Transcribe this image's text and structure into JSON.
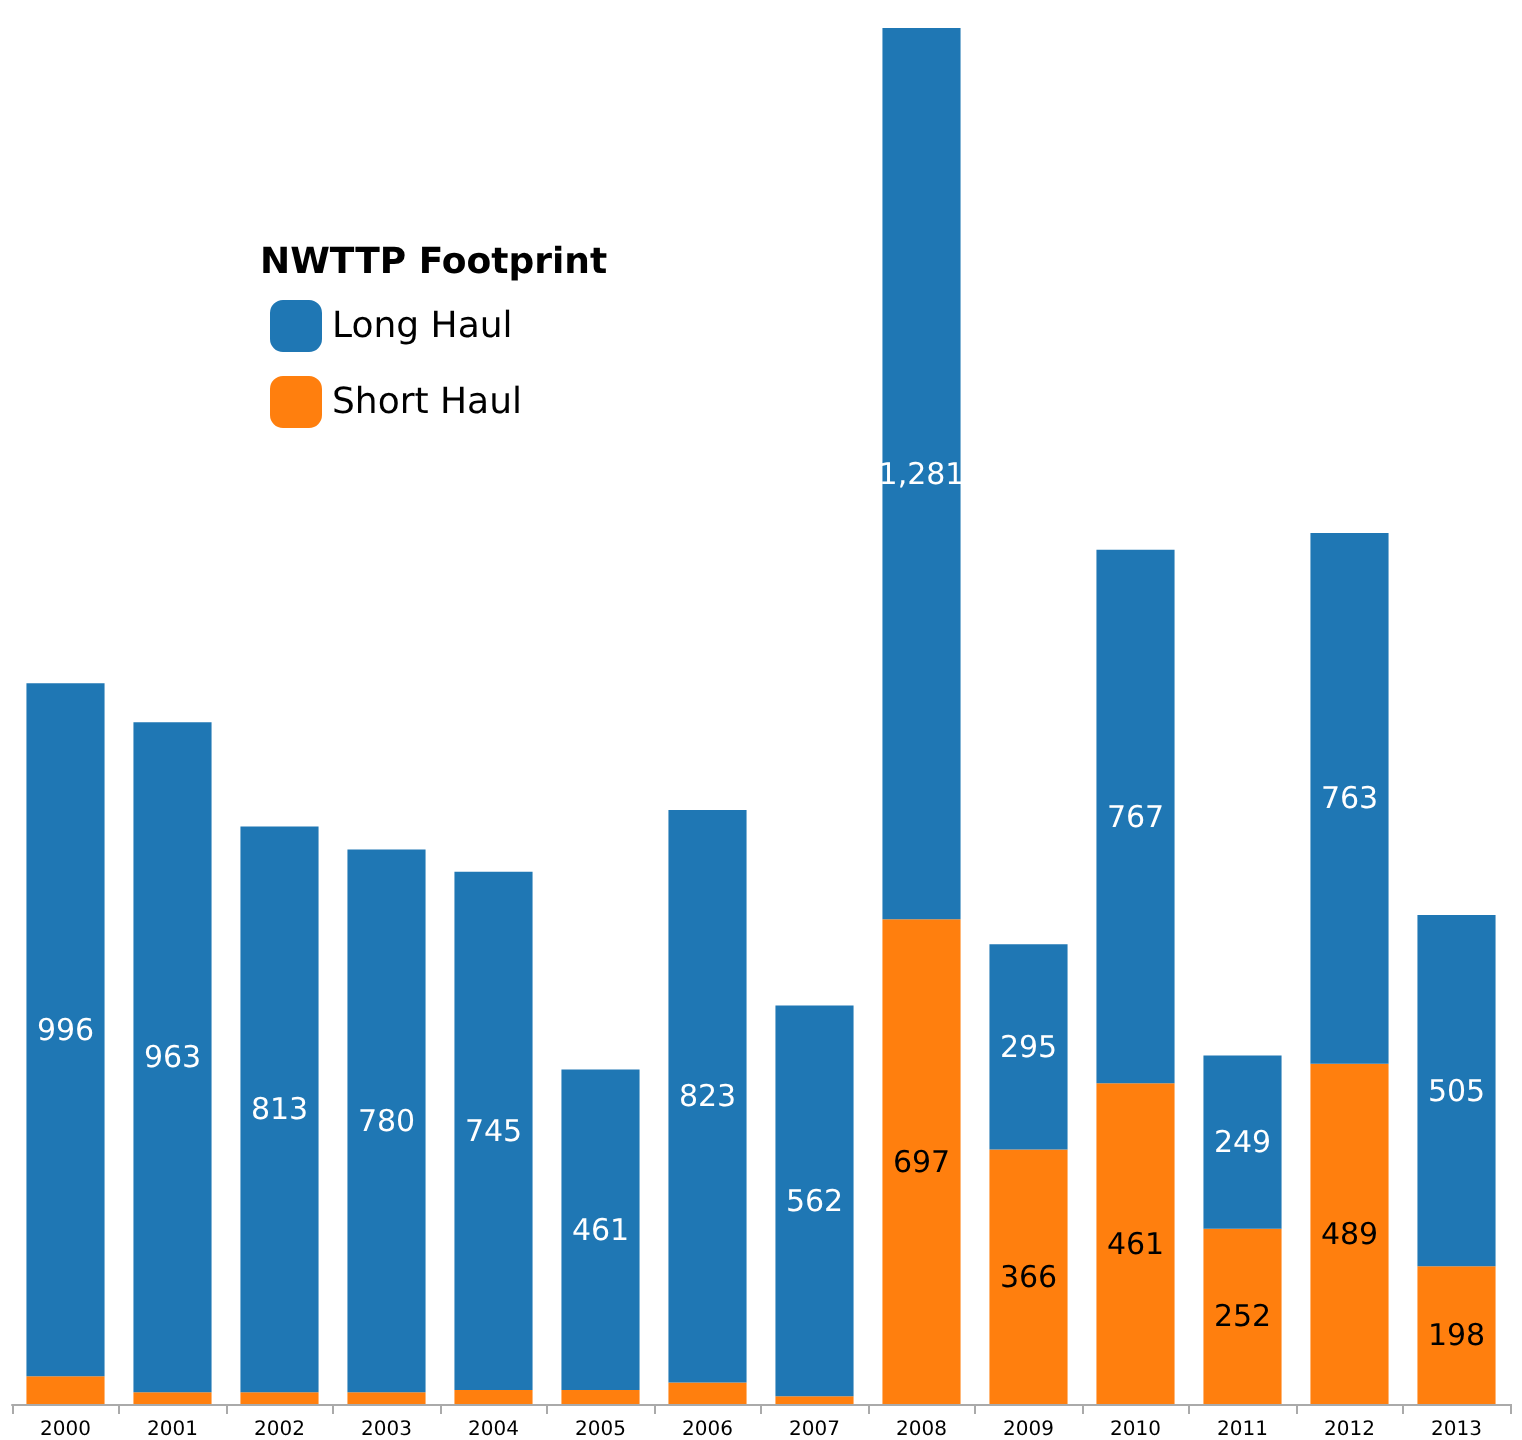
{
  "chart_data": {
    "type": "bar",
    "stacked": true,
    "legend": "top left",
    "legend_title": "NWTTP Footprint",
    "categories": [
      "2000",
      "2001",
      "2002",
      "2003",
      "2004",
      "2005",
      "2006",
      "2007",
      "2008",
      "2009",
      "2010",
      "2011",
      "2012",
      "2013"
    ],
    "series": [
      {
        "name": "Short Haul",
        "color": "#ff7f0e",
        "values": [
          40,
          17,
          17,
          17,
          20,
          20,
          31,
          11,
          697,
          366,
          461,
          252,
          489,
          198
        ],
        "value_labels": [
          null,
          null,
          null,
          null,
          null,
          null,
          null,
          null,
          "697",
          "366",
          "461",
          "252",
          "489",
          "198"
        ]
      },
      {
        "name": "Long Haul",
        "color": "#1f77b4",
        "values": [
          996,
          963,
          813,
          780,
          745,
          461,
          823,
          562,
          1281,
          295,
          767,
          249,
          763,
          505
        ],
        "value_labels": [
          "996",
          "963",
          "813",
          "780",
          "745",
          "461",
          "823",
          "562",
          "1,281",
          "295",
          "767",
          "249",
          "763",
          "505"
        ]
      }
    ]
  }
}
